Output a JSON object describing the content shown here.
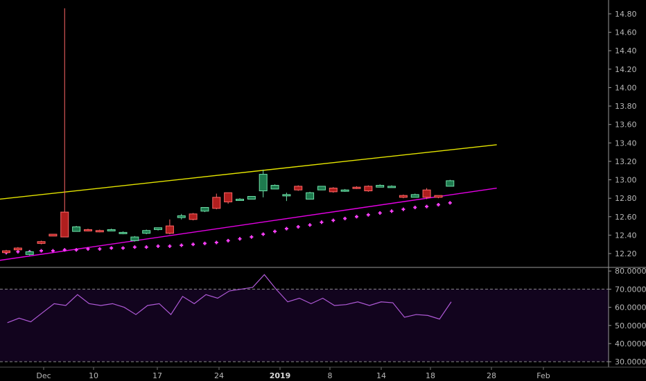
{
  "chart_data": [
    {
      "type": "candlestick",
      "ylim": [
        12.05,
        14.95
      ],
      "y_ticks": [
        "14.80",
        "14.60",
        "14.40",
        "14.20",
        "14.00",
        "13.80",
        "13.60",
        "13.40",
        "13.20",
        "13.00",
        "12.80",
        "12.60",
        "12.40",
        "12.20"
      ],
      "x_ticks": [
        "Dec",
        "10",
        "17",
        "24",
        "2019",
        "8",
        "14",
        "18",
        "28",
        "Feb"
      ],
      "colors": {
        "up_fill": "#1e7a4e",
        "up_edge": "#6fe0a8",
        "down_fill": "#b01e1e",
        "down_edge": "#ff6666",
        "channel_upper": "#e6e600",
        "channel_lower": "#e600e6",
        "psar": "#ff40ff"
      },
      "candles": [
        {
          "o": 12.23,
          "h": 12.24,
          "l": 12.2,
          "c": 12.21
        },
        {
          "o": 12.26,
          "h": 12.27,
          "l": 12.23,
          "c": 12.24
        },
        {
          "o": 12.19,
          "h": 12.23,
          "l": 12.18,
          "c": 12.22
        },
        {
          "o": 12.33,
          "h": 12.34,
          "l": 12.3,
          "c": 12.31
        },
        {
          "o": 12.41,
          "h": 12.41,
          "l": 12.39,
          "c": 12.39
        },
        {
          "o": 12.65,
          "h": 14.86,
          "l": 12.38,
          "c": 12.38
        },
        {
          "o": 12.44,
          "h": 12.5,
          "l": 12.44,
          "c": 12.49
        },
        {
          "o": 12.46,
          "h": 12.47,
          "l": 12.44,
          "c": 12.45
        },
        {
          "o": 12.45,
          "h": 12.46,
          "l": 12.43,
          "c": 12.44
        },
        {
          "o": 12.46,
          "h": 12.47,
          "l": 12.45,
          "c": 12.46
        },
        {
          "o": 12.42,
          "h": 12.44,
          "l": 12.41,
          "c": 12.43
        },
        {
          "o": 12.34,
          "h": 12.39,
          "l": 12.33,
          "c": 12.38
        },
        {
          "o": 12.42,
          "h": 12.46,
          "l": 12.41,
          "c": 12.45
        },
        {
          "o": 12.46,
          "h": 12.48,
          "l": 12.45,
          "c": 12.48
        },
        {
          "o": 12.5,
          "h": 12.57,
          "l": 12.41,
          "c": 12.42
        },
        {
          "o": 12.59,
          "h": 12.63,
          "l": 12.57,
          "c": 12.61
        },
        {
          "o": 12.63,
          "h": 12.64,
          "l": 12.56,
          "c": 12.57
        },
        {
          "o": 12.66,
          "h": 12.7,
          "l": 12.65,
          "c": 12.7
        },
        {
          "o": 12.81,
          "h": 12.85,
          "l": 12.68,
          "c": 12.69
        },
        {
          "o": 12.86,
          "h": 12.86,
          "l": 12.74,
          "c": 12.76
        },
        {
          "o": 12.79,
          "h": 12.8,
          "l": 12.78,
          "c": 12.79
        },
        {
          "o": 12.79,
          "h": 12.82,
          "l": 12.79,
          "c": 12.82
        },
        {
          "o": 12.88,
          "h": 13.11,
          "l": 12.81,
          "c": 13.06
        },
        {
          "o": 12.9,
          "h": 12.95,
          "l": 12.9,
          "c": 12.94
        },
        {
          "o": 12.84,
          "h": 12.86,
          "l": 12.77,
          "c": 12.84
        },
        {
          "o": 12.93,
          "h": 12.94,
          "l": 12.88,
          "c": 12.89
        },
        {
          "o": 12.79,
          "h": 12.87,
          "l": 12.79,
          "c": 12.86
        },
        {
          "o": 12.89,
          "h": 12.93,
          "l": 12.89,
          "c": 12.93
        },
        {
          "o": 12.91,
          "h": 12.92,
          "l": 12.86,
          "c": 12.87
        },
        {
          "o": 12.89,
          "h": 12.9,
          "l": 12.87,
          "c": 12.89
        },
        {
          "o": 12.92,
          "h": 12.93,
          "l": 12.9,
          "c": 12.91
        },
        {
          "o": 12.93,
          "h": 12.94,
          "l": 12.87,
          "c": 12.88
        },
        {
          "o": 12.92,
          "h": 12.95,
          "l": 12.92,
          "c": 12.94
        },
        {
          "o": 12.93,
          "h": 12.94,
          "l": 12.92,
          "c": 12.93
        },
        {
          "o": 12.83,
          "h": 12.84,
          "l": 12.8,
          "c": 12.81
        },
        {
          "o": 12.81,
          "h": 12.85,
          "l": 12.81,
          "c": 12.84
        },
        {
          "o": 12.89,
          "h": 12.91,
          "l": 12.79,
          "c": 12.81
        },
        {
          "o": 12.83,
          "h": 12.83,
          "l": 12.8,
          "c": 12.81
        },
        {
          "o": 12.93,
          "h": 13.0,
          "l": 12.93,
          "c": 12.99
        }
      ],
      "channel_upper": [
        [
          -2,
          12.77
        ],
        [
          42,
          13.38
        ]
      ],
      "channel_lower": [
        [
          -2,
          12.1
        ],
        [
          42,
          12.91
        ]
      ],
      "psar": [
        12.21,
        12.22,
        12.22,
        12.23,
        12.23,
        12.24,
        12.24,
        12.25,
        12.25,
        12.26,
        12.26,
        12.27,
        12.27,
        12.28,
        12.28,
        12.29,
        12.3,
        12.31,
        12.32,
        12.34,
        12.36,
        12.38,
        12.41,
        12.44,
        12.47,
        12.49,
        12.51,
        12.54,
        12.56,
        12.58,
        12.6,
        12.62,
        12.64,
        12.66,
        12.68,
        12.7,
        12.71,
        12.73,
        12.75
      ]
    },
    {
      "type": "line",
      "ylim": [
        27.0,
        82.0
      ],
      "y_ticks": [
        "80.0000",
        "70.0000",
        "60.0000",
        "50.0000",
        "40.0000",
        "30.0000"
      ],
      "band": [
        30,
        70
      ],
      "colors": {
        "line": "#b05ad8",
        "band_fill": "#12041e",
        "band_edge": "#8a8a8a"
      },
      "values": [
        51.5,
        54,
        52,
        57,
        62,
        61,
        67,
        62,
        61,
        62,
        60,
        56,
        61,
        62,
        56,
        66,
        62,
        67,
        65,
        69,
        70,
        71,
        78,
        70,
        63,
        65,
        62,
        65,
        61,
        61.5,
        63,
        61,
        63,
        62.5,
        54.5,
        56,
        55.5,
        53.5,
        63
      ]
    }
  ]
}
